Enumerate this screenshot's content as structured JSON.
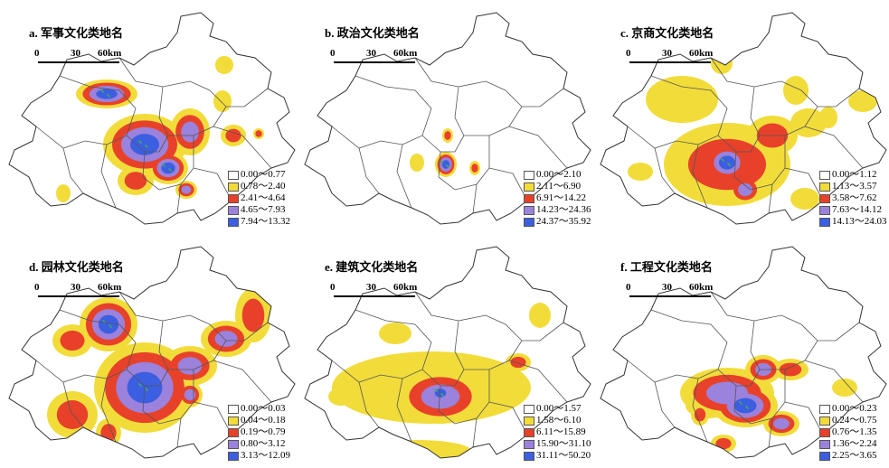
{
  "classes": {
    "colors": [
      "#ffffff",
      "#f2dc3a",
      "#e8412a",
      "#9b82dc",
      "#3b5fe0"
    ]
  },
  "scale": {
    "zero": "0",
    "mid": "30",
    "max": "60km"
  },
  "panels": [
    {
      "title": "a. 军事文化类地名",
      "legend": [
        "0.00～0.77",
        "0.78～2.40",
        "2.41～4.64",
        "4.65～7.93",
        "7.94～13.32"
      ]
    },
    {
      "title": "b. 政治文化类地名",
      "legend": [
        "0.00～2.10",
        "2.11～6.90",
        "6.91～14.22",
        "14.23～24.36",
        "24.37～35.92"
      ]
    },
    {
      "title": "c. 京商文化类地名",
      "legend": [
        "0.00～1.12",
        "1.13～3.57",
        "3.58～7.62",
        "7.63～14.12",
        "14.13～24.03"
      ]
    },
    {
      "title": "d. 园林文化类地名",
      "legend": [
        "0.00～0.03",
        "0.04～0.18",
        "0.19～0.79",
        "0.80～3.12",
        "3.13～12.09"
      ]
    },
    {
      "title": "e. 建筑文化类地名",
      "legend": [
        "0.00～1.57",
        "1.58～6.10",
        "6.11～15.89",
        "15.90～31.10",
        "31.11～50.20"
      ]
    },
    {
      "title": "f. 工程文化类地名",
      "legend": [
        "0.00～0.23",
        "0.24～0.75",
        "0.76～1.35",
        "1.36～2.24",
        "2.25～3.65"
      ]
    }
  ]
}
